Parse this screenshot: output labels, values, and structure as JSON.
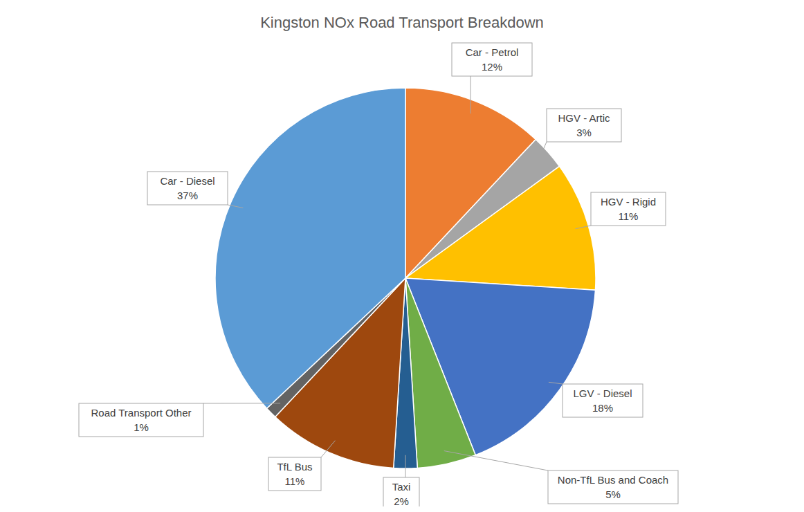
{
  "chart_data": {
    "type": "pie",
    "title": "Kingston NOx Road Transport Breakdown",
    "categories": [
      "Car - Petrol",
      "HGV - Artic",
      "HGV - Rigid",
      "LGV - Diesel",
      "Non-TfL Bus and Coach",
      "Taxi",
      "TfL Bus",
      "Road Transport Other",
      "Car - Diesel"
    ],
    "values": [
      12,
      3,
      11,
      18,
      5,
      2,
      11,
      1,
      37
    ],
    "value_labels": [
      "12%",
      "3%",
      "11%",
      "18%",
      "5%",
      "2%",
      "11%",
      "1%",
      "37%"
    ],
    "colors": [
      "#ED7D31",
      "#A5A5A5",
      "#FFC000",
      "#4472C4",
      "#70AD47",
      "#255E91",
      "#9E480E",
      "#636363",
      "#5B9BD5"
    ],
    "data_labels": true
  }
}
